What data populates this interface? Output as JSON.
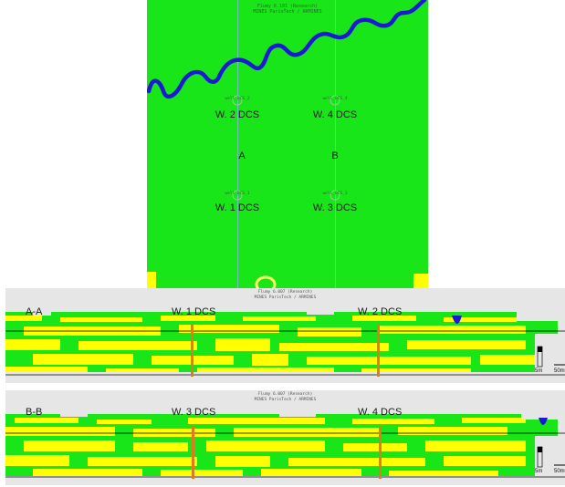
{
  "plan": {
    "header_line1": "Flumy 6.101 (Research)",
    "header_line2": "MINES ParisTech / ARMINES",
    "wells": [
      {
        "label": "W. 2 DCS",
        "id": "well_DCS_2"
      },
      {
        "label": "W. 4 DCS",
        "id": "well_DCS_4"
      },
      {
        "label": "W. 1 DCS",
        "id": "well_DCS_1"
      },
      {
        "label": "W. 3 DCS",
        "id": "well_DCS_3"
      }
    ],
    "zones": [
      "A",
      "B"
    ]
  },
  "section_a": {
    "header_line1": "Flumy 6.007 (Research)",
    "header_line2": "MINES ParisTech / ARMINES",
    "name": "A-A",
    "well_left": "W. 1 DCS",
    "well_right": "W. 2 DCS",
    "scale_vertical": "5m",
    "scale_horizontal": "50m"
  },
  "section_b": {
    "header_line1": "Flumy 6.007 (Research)",
    "header_line2": "MINES ParisTech / ARMINES",
    "name": "B-B",
    "well_left": "W. 3 DCS",
    "well_right": "W. 4 DCS",
    "scale_vertical": "5m",
    "scale_horizontal": "50m"
  },
  "colors": {
    "floodplain": "#19e619",
    "sand": "#ffff00",
    "channel": "#1a1ad4",
    "well": "#e07a20",
    "background": "#e6e6e6"
  }
}
